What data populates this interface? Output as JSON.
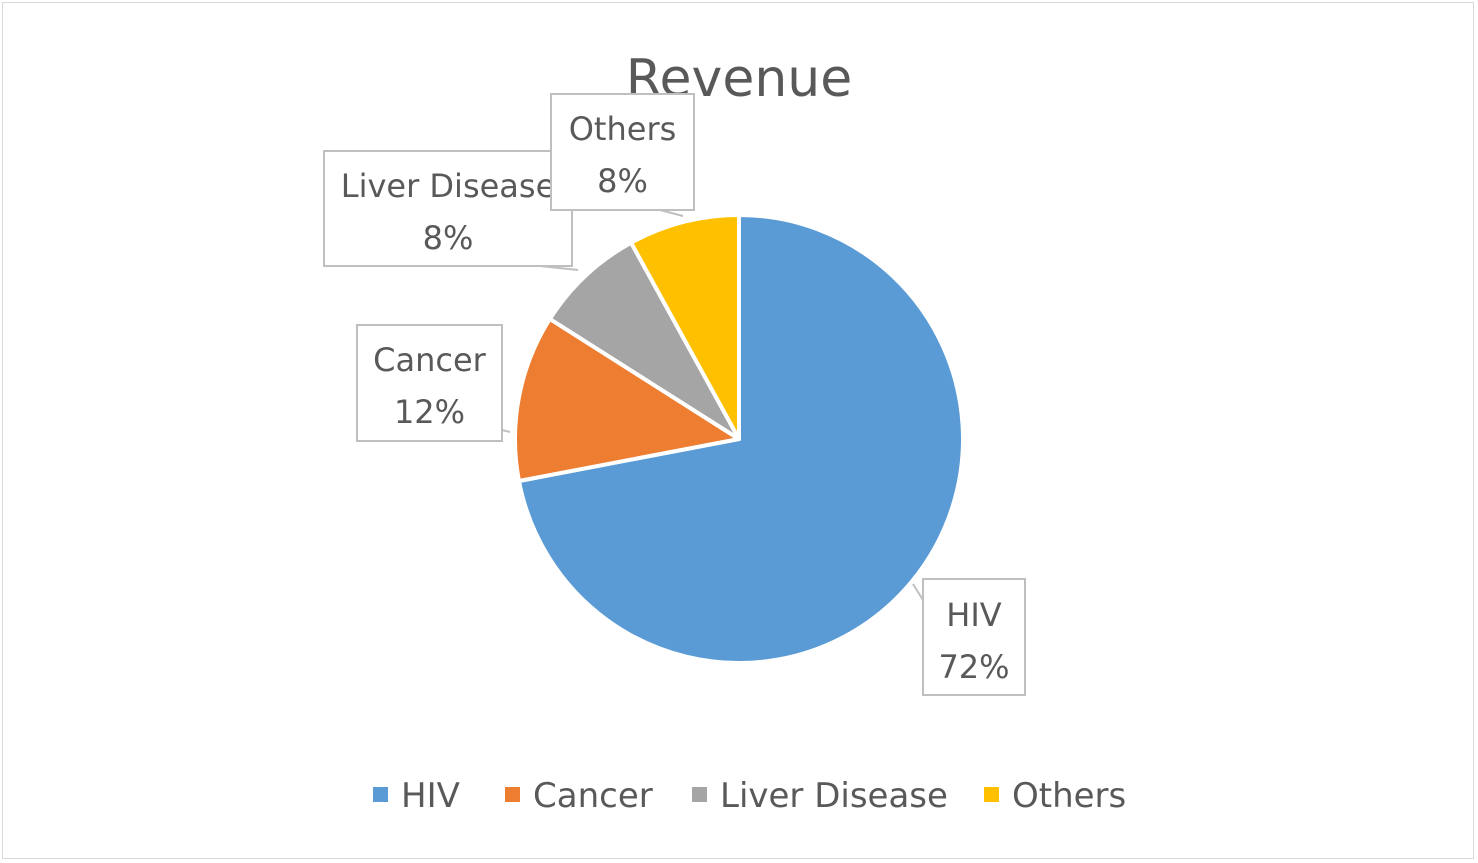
{
  "chart_data": {
    "type": "pie",
    "title": "Revenue",
    "categories": [
      "HIV",
      "Cancer",
      "Liver Disease",
      "Others"
    ],
    "values": [
      72,
      12,
      8,
      8
    ],
    "value_unit": "%",
    "colors": [
      "#5b9bd5",
      "#ed7d31",
      "#a5a5a5",
      "#ffc000"
    ],
    "data_labels": [
      {
        "category": "HIV",
        "percent": "72%"
      },
      {
        "category": "Cancer",
        "percent": "12%"
      },
      {
        "category": "Liver Disease",
        "percent": "8%"
      },
      {
        "category": "Others",
        "percent": "8%"
      }
    ],
    "legend": {
      "position": "bottom",
      "entries": [
        "HIV",
        "Cancer",
        "Liver Disease",
        "Others"
      ]
    }
  }
}
